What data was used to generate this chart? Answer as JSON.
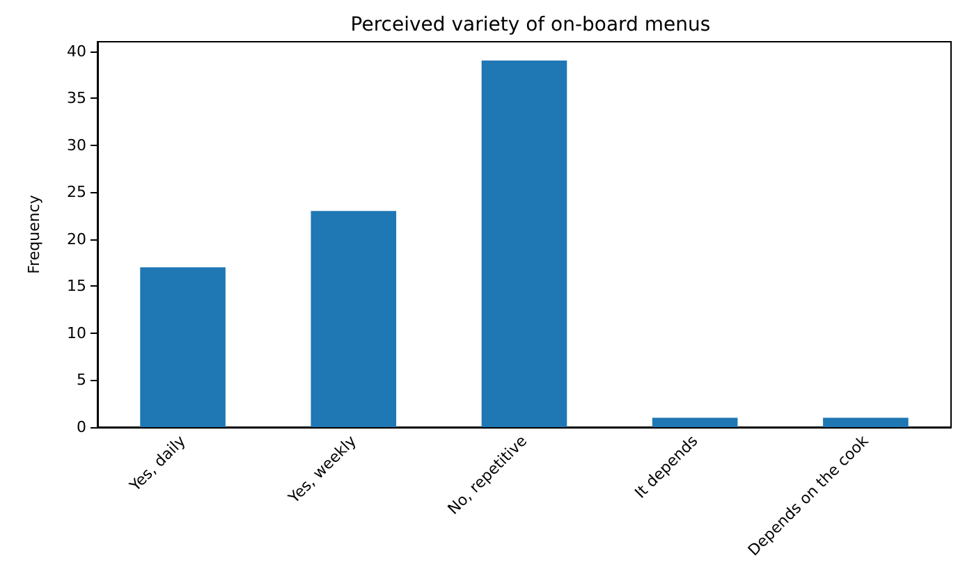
{
  "chart_data": {
    "type": "bar",
    "title": "Perceived variety of on-board menus",
    "ylabel": "Frequency",
    "categories": [
      "Yes, daily",
      "Yes, weekly",
      "No, repetitive",
      "It depends",
      "Depends on the cook"
    ],
    "values": [
      17,
      23,
      39,
      1,
      1
    ],
    "color": "#1f77b4",
    "ylim": [
      0,
      41
    ],
    "yticks": [
      0,
      5,
      10,
      15,
      20,
      25,
      30,
      35,
      40
    ],
    "grid": false
  }
}
